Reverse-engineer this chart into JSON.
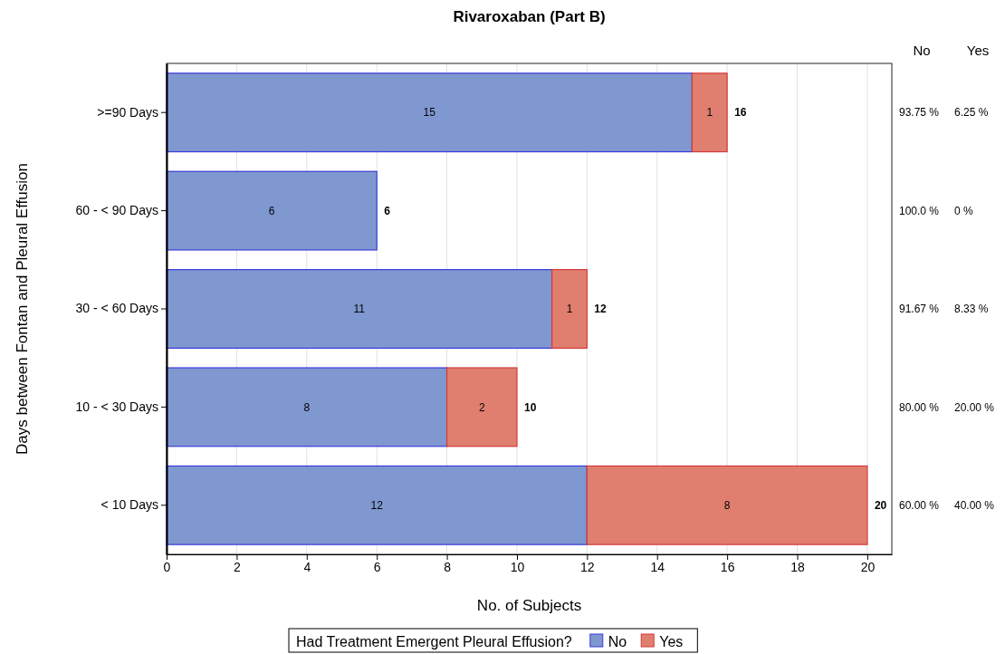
{
  "chart_data": {
    "type": "bar",
    "orientation": "horizontal",
    "stacked": true,
    "title": "Rivaroxaban (Part B)",
    "xlabel": "No. of Subjects",
    "ylabel": "Days between Fontan and Pleural Effusion",
    "legend_title": "Had Treatment Emergent Pleural Effusion?",
    "legend": "bottom",
    "grid": "x",
    "categories": [
      ">=90 Days",
      "60 - < 90 Days",
      "30 - < 60 Days",
      "10 - < 30 Days",
      "< 10 Days"
    ],
    "series": [
      {
        "name": "No",
        "color": "#7f98cf",
        "values": [
          15,
          6,
          11,
          8,
          12
        ],
        "value_labels": [
          "15",
          "6",
          "11",
          "8",
          "12"
        ]
      },
      {
        "name": "Yes",
        "color": "#e07f6f",
        "values": [
          1,
          0,
          1,
          2,
          8
        ],
        "value_labels": [
          "1",
          null,
          "1",
          "2",
          "8"
        ]
      }
    ],
    "totals": [
      "16",
      "6",
      "12",
      "10",
      "20"
    ],
    "xlim": [
      0,
      20.7
    ],
    "xticks": [
      0,
      2,
      4,
      6,
      8,
      10,
      12,
      14,
      16,
      18,
      20
    ],
    "annotations": [
      "No",
      "Yes",
      "93.75 %",
      "6.25 %",
      "100.0 %",
      "0 %",
      "91.67 %",
      "8.33 %",
      "80.00 %",
      "20.00 %",
      "60.00 %",
      "40.00 %"
    ]
  }
}
